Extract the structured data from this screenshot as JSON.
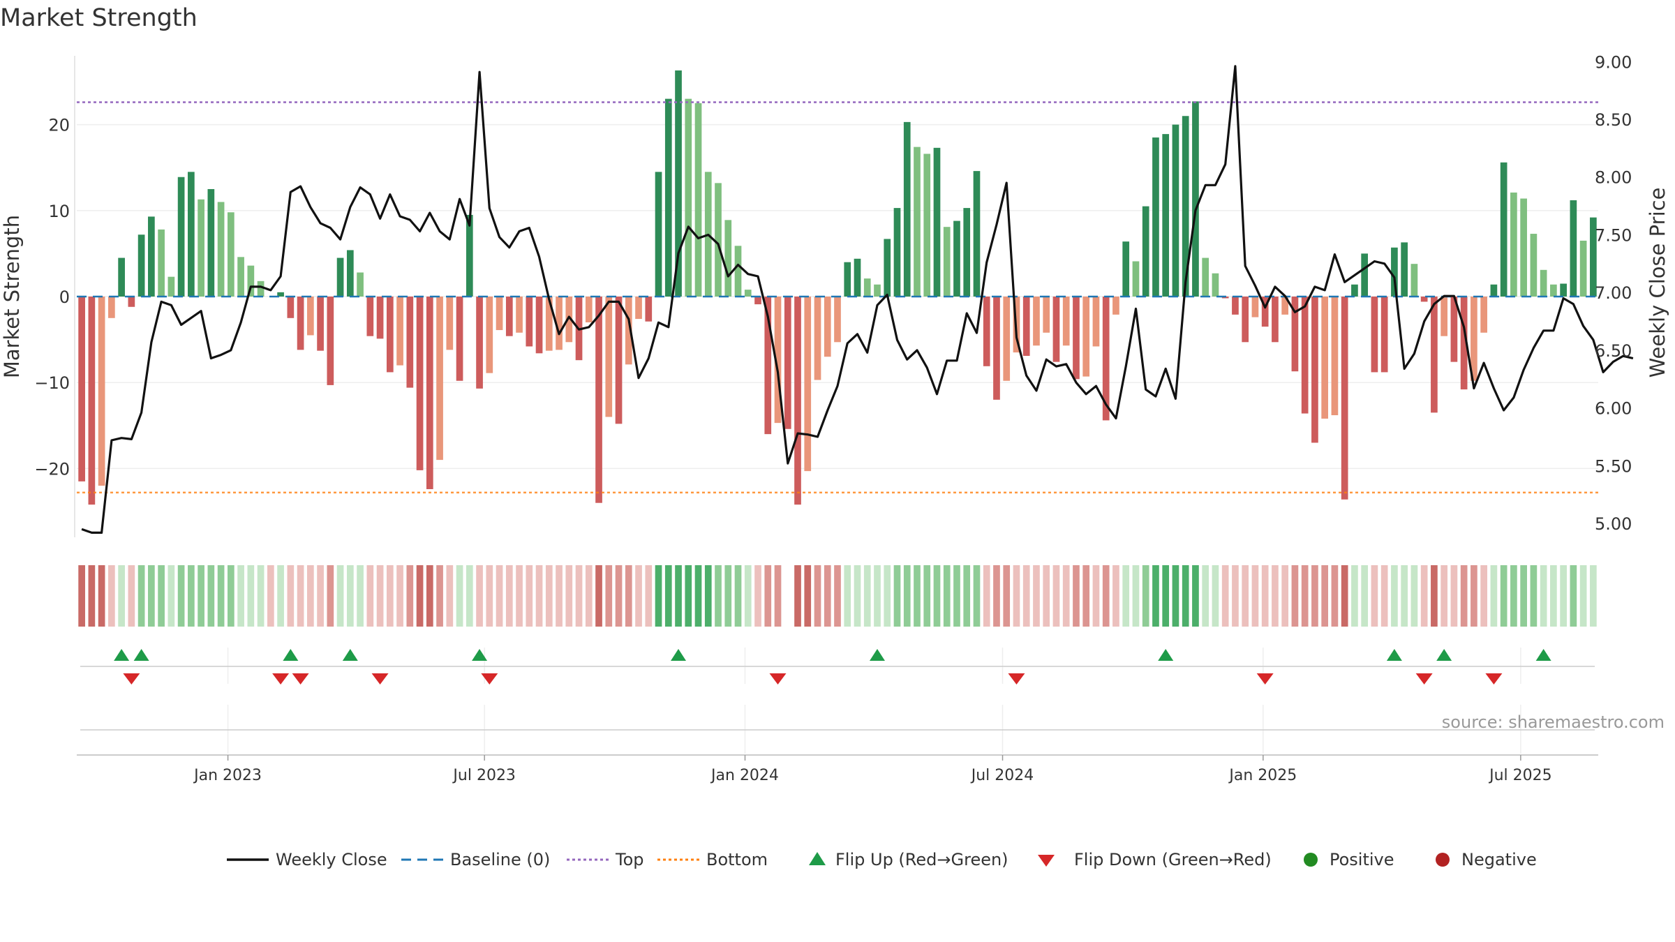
{
  "title": "Market Strength",
  "source": "source: sharemaestro.com",
  "colors": {
    "background": "#ffffff",
    "strong_green": "#2e8b57",
    "light_green": "#7fbf7f",
    "strong_red": "#cd5c5c",
    "light_red": "#e9967a",
    "price_line": "#111111",
    "baseline": "#1f77b4",
    "top_line": "#9467bd",
    "bottom_line": "#ff7f0e",
    "flip_up": "#1e9b48",
    "flip_down": "#d62728",
    "positive": "#228b22",
    "negative": "#b22222",
    "grid": "#eeeeee",
    "axis_text": "#333333"
  },
  "chart_data": {
    "type": "bar+line",
    "title": "Market Strength",
    "ylabel_left": "Market Strength",
    "ylabel_right": "Weekly Close Price",
    "ylim_left": [
      -28,
      28
    ],
    "ylim_right": [
      4.88,
      9.05
    ],
    "yticks_left": [
      -20,
      -10,
      0,
      10,
      20
    ],
    "yticks_left_labels": [
      "−20",
      "−10",
      "0",
      "10",
      "20"
    ],
    "yticks_right": [
      5.0,
      5.5,
      6.0,
      6.5,
      7.0,
      7.5,
      8.0,
      8.5,
      9.0
    ],
    "yticks_right_labels": [
      "5.00",
      "5.50",
      "6.00",
      "6.50",
      "7.00",
      "7.50",
      "8.00",
      "8.50",
      "9.00"
    ],
    "x_tick_labels": [
      "Jan 2023",
      "Jul 2023",
      "Jan 2024",
      "Jul 2024",
      "Jan 2025",
      "Jul 2025"
    ],
    "x_tick_week_index": [
      15.2,
      41.0,
      67.2,
      93.1,
      119.3,
      145.2
    ],
    "top_level": 22.6,
    "bottom_level": -22.8,
    "baseline": 0,
    "strength": [
      -21.5,
      -24.2,
      -22,
      -2.5,
      4.5,
      -1.2,
      7.2,
      9.3,
      7.8,
      2.3,
      13.9,
      14.5,
      11.3,
      12.5,
      11,
      9.8,
      4.6,
      3.6,
      1.8,
      0,
      0.5,
      -2.5,
      -6.2,
      -4.5,
      -6.3,
      -10.3,
      4.5,
      5.4,
      2.8,
      -4.6,
      -4.9,
      -8.8,
      -8,
      -10.6,
      -20.2,
      -22.4,
      -19,
      -6.2,
      -9.8,
      9.5,
      -10.7,
      -8.9,
      -3.9,
      -4.6,
      -4.2,
      -5.8,
      -6.6,
      -6.3,
      -6.2,
      -5.3,
      -7.4,
      -3,
      -24,
      -14,
      -14.8,
      -7.9,
      -2.6,
      -2.9,
      14.5,
      23,
      26.3,
      23,
      22.5,
      14.5,
      13.2,
      8.9,
      5.9,
      0.8,
      -0.9,
      -16,
      -14.7,
      -15.4,
      -24.2,
      -20.3,
      -9.7,
      -7,
      -5.3,
      4,
      4.4,
      2.1,
      1.4,
      6.7,
      10.3,
      20.3,
      17.4,
      16.6,
      17.3,
      8.1,
      8.8,
      10.3,
      14.6,
      -8.1,
      -12,
      -9.8,
      -6.5,
      -6.9,
      -5.7,
      -4.2,
      -7.6,
      -5.7,
      -9.6,
      -9.3,
      -5.8,
      -14.4,
      -2.1,
      6.4,
      4.1,
      10.5,
      18.5,
      18.9,
      20,
      21,
      22.7,
      4.5,
      2.7,
      -0.2,
      -2.1,
      -5.3,
      -2.4,
      -3.5,
      -5.3,
      -2.1,
      -8.7,
      -13.6,
      -17,
      -14.2,
      -13.8,
      -23.6,
      1.4,
      5,
      -8.8,
      -8.8,
      5.7,
      6.3,
      3.8,
      -0.6,
      -13.5,
      -4.6,
      -7.6,
      -10.8,
      -9.8,
      -4.2,
      1.4,
      15.6,
      12.1,
      11.4,
      7.3,
      3.1,
      1.4,
      1.5,
      11.2,
      6.5,
      9.2
    ],
    "weekly_close": [
      4.95,
      4.92,
      4.92,
      5.72,
      5.74,
      5.73,
      5.96,
      6.57,
      6.92,
      6.89,
      6.72,
      6.78,
      6.84,
      6.43,
      6.46,
      6.5,
      6.74,
      7.05,
      7.05,
      7.02,
      7.14,
      7.87,
      7.92,
      7.74,
      7.6,
      7.56,
      7.46,
      7.74,
      7.91,
      7.85,
      7.64,
      7.85,
      7.66,
      7.63,
      7.53,
      7.69,
      7.53,
      7.46,
      7.81,
      7.58,
      8.91,
      7.73,
      7.48,
      7.39,
      7.53,
      7.56,
      7.31,
      6.94,
      6.64,
      6.79,
      6.68,
      6.7,
      6.8,
      6.92,
      6.92,
      6.77,
      6.26,
      6.43,
      6.74,
      6.7,
      7.34,
      7.57,
      7.47,
      7.5,
      7.42,
      7.14,
      7.24,
      7.16,
      7.14,
      6.79,
      6.31,
      5.52,
      5.78,
      5.77,
      5.75,
      5.98,
      6.19,
      6.56,
      6.64,
      6.48,
      6.89,
      6.98,
      6.59,
      6.42,
      6.5,
      6.35,
      6.12,
      6.41,
      6.41,
      6.82,
      6.65,
      7.26,
      7.59,
      7.95,
      6.61,
      6.28,
      6.15,
      6.42,
      6.36,
      6.38,
      6.22,
      6.12,
      6.19,
      6.03,
      5.91,
      6.36,
      6.86,
      6.16,
      6.1,
      6.34,
      6.08,
      7.09,
      7.71,
      7.93,
      7.93,
      8.11,
      8.96,
      7.23,
      7.06,
      6.87,
      7.05,
      6.97,
      6.83,
      6.88,
      7.05,
      7.02,
      7.33,
      7.09,
      7.15,
      7.21,
      7.27,
      7.25,
      7.13,
      6.34,
      6.47,
      6.75,
      6.9,
      6.97,
      6.97,
      6.7,
      6.17,
      6.39,
      6.17,
      5.98,
      6.09,
      6.33,
      6.52,
      6.67,
      6.67,
      6.95,
      6.9,
      6.71,
      6.59,
      6.31,
      6.4,
      6.45,
      6.43
    ],
    "band_intensity": [
      -3,
      -3,
      -3,
      -1,
      1,
      -1,
      2,
      2,
      2,
      1,
      2,
      2,
      2,
      2,
      2,
      2,
      1,
      1,
      1,
      -1,
      1,
      -1,
      -1,
      -1,
      -1,
      -2,
      1,
      1,
      1,
      -1,
      -1,
      -1,
      -1,
      -2,
      -3,
      -3,
      -2,
      -1,
      1,
      1,
      -1,
      -1,
      -1,
      -1,
      -1,
      -1,
      -1,
      -1,
      -1,
      -1,
      -1,
      -1,
      -3,
      -2,
      -2,
      -2,
      -1,
      -1,
      3,
      3,
      3,
      3,
      3,
      3,
      2,
      2,
      2,
      1,
      -1,
      -2,
      -2,
      0,
      -3,
      -3,
      -2,
      -2,
      -2,
      1,
      1,
      1,
      1,
      1,
      2,
      2,
      2,
      2,
      2,
      2,
      2,
      2,
      2,
      -1,
      -2,
      -2,
      -1,
      -1,
      -1,
      -1,
      -1,
      -1,
      -2,
      -2,
      -1,
      -2,
      -1,
      1,
      1,
      2,
      3,
      3,
      3,
      3,
      3,
      1,
      1,
      -1,
      -1,
      -1,
      -1,
      -1,
      -1,
      -1,
      -2,
      -2,
      -2,
      -2,
      -2,
      -3,
      1,
      1,
      -1,
      -1,
      1,
      1,
      1,
      -1,
      -3,
      -1,
      -1,
      -2,
      -2,
      -1,
      1,
      2,
      2,
      2,
      2,
      1,
      1,
      1,
      2,
      1,
      1
    ],
    "flip_up_weeks": [
      4,
      6,
      21,
      27,
      40,
      60,
      80,
      109,
      132,
      137,
      147
    ],
    "flip_down_weeks": [
      5,
      20,
      22,
      30,
      41,
      70,
      94,
      119,
      135,
      142
    ],
    "series": [
      {
        "name": "Weekly Close",
        "style": "line"
      },
      {
        "name": "Baseline (0)",
        "style": "dashed"
      },
      {
        "name": "Top",
        "style": "dotted",
        "value": 22.6
      },
      {
        "name": "Bottom",
        "style": "dotted",
        "value": -22.8
      }
    ]
  },
  "legend": [
    {
      "key": "close",
      "label": "Weekly Close"
    },
    {
      "key": "baseline",
      "label": "Baseline (0)"
    },
    {
      "key": "top",
      "label": "Top"
    },
    {
      "key": "bottom",
      "label": "Bottom"
    },
    {
      "key": "flipup",
      "label": "Flip Up (Red→Green)"
    },
    {
      "key": "flipdown",
      "label": "Flip Down (Green→Red)"
    },
    {
      "key": "positive",
      "label": "Positive"
    },
    {
      "key": "negative",
      "label": "Negative"
    }
  ]
}
